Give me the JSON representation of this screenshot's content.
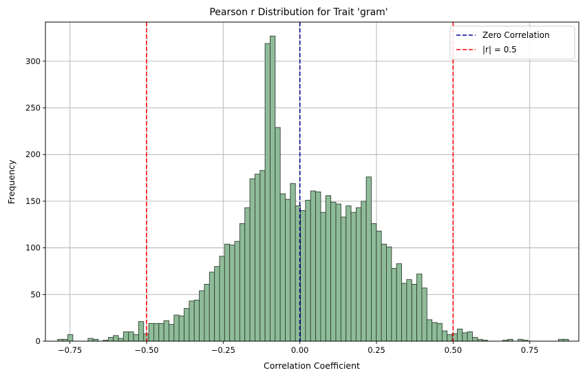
{
  "chart_data": {
    "type": "bar",
    "subtype": "histogram",
    "title": "Pearson r Distribution for Trait 'gram'",
    "xlabel": "Correlation Coefficient",
    "ylabel": "Frequency",
    "xlim": [
      -0.83,
      0.91
    ],
    "ylim": [
      0,
      342
    ],
    "xticks": [
      -0.75,
      -0.5,
      -0.25,
      0.0,
      0.25,
      0.5,
      0.75
    ],
    "xtick_labels": [
      "−0.75",
      "−0.50",
      "−0.25",
      "0.00",
      "0.25",
      "0.50",
      "0.75"
    ],
    "yticks": [
      0,
      50,
      100,
      150,
      200,
      250,
      300
    ],
    "yticklabels": [
      "0",
      "50",
      "100",
      "150",
      "200",
      "250",
      "300"
    ],
    "grid": true,
    "bar_color": "#8fbc98",
    "bar_edge_color": "#2f3f33",
    "bin_start": -0.79,
    "bin_width": 0.0165,
    "counts": [
      2,
      2,
      7,
      0,
      0,
      0,
      3,
      2,
      0,
      1,
      4,
      6,
      3,
      10,
      10,
      7,
      21,
      8,
      19,
      19,
      19,
      22,
      18,
      28,
      27,
      35,
      43,
      44,
      54,
      61,
      74,
      80,
      91,
      104,
      103,
      107,
      126,
      143,
      174,
      179,
      183,
      319,
      327,
      229,
      158,
      152,
      169,
      145,
      140,
      151,
      161,
      160,
      138,
      156,
      149,
      147,
      133,
      145,
      138,
      143,
      150,
      176,
      126,
      118,
      104,
      101,
      78,
      83,
      62,
      66,
      61,
      72,
      57,
      23,
      20,
      19,
      11,
      7,
      8,
      13,
      9,
      10,
      4,
      2,
      1,
      0,
      0,
      0,
      1,
      2,
      0,
      2,
      1,
      0,
      0,
      0,
      0,
      0,
      0,
      2,
      2
    ],
    "reference_lines": [
      {
        "x": 0.0,
        "color": "#00008b",
        "style": "dashed"
      },
      {
        "x": -0.5,
        "color": "#ff0000",
        "style": "dashed"
      },
      {
        "x": 0.5,
        "color": "#ff0000",
        "style": "dashed"
      }
    ],
    "legend": {
      "position": "top-right",
      "entries": [
        {
          "label": "Zero Correlation",
          "color": "#00008b",
          "style": "dashed"
        },
        {
          "label": "|r| = 0.5",
          "color": "#ff0000",
          "style": "dashed"
        }
      ]
    }
  }
}
